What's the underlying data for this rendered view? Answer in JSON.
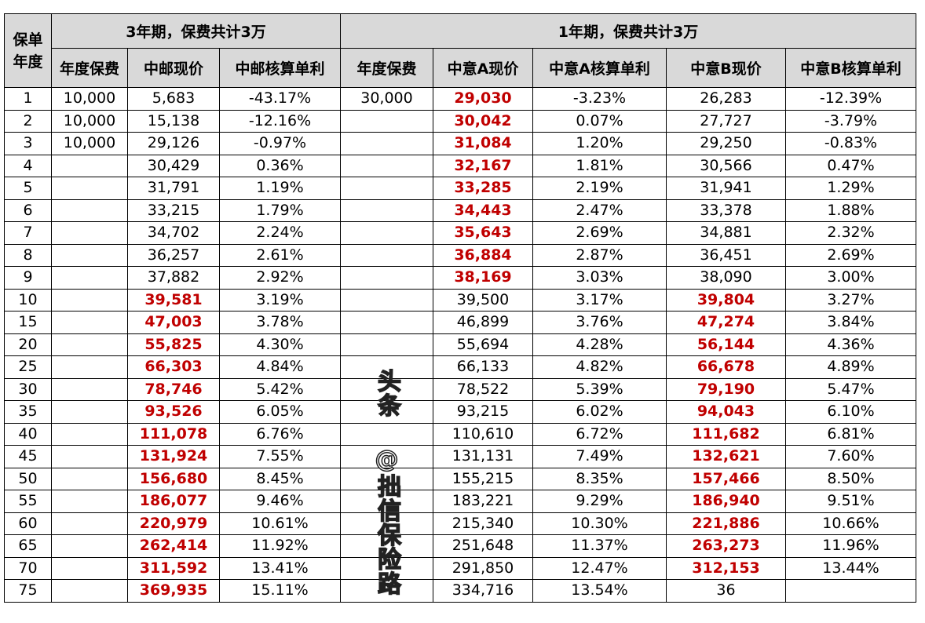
{
  "header": {
    "year_col": "保单年度",
    "group1": "3年期，保费共计3万",
    "group2": "1年期，保费共计3万",
    "columns": [
      "年度保费",
      "中邮现价",
      "中邮核算单利",
      "年度保费",
      "中意A现价",
      "中意A核算单利",
      "中意B现价",
      "中意B核算单利"
    ]
  },
  "highlight_color": "#c00000",
  "rows": [
    {
      "cells": [
        "1",
        "10,000",
        "5,683",
        "-43.17%",
        "30,000",
        "29,030",
        "-3.23%",
        "26,283",
        "-12.39%"
      ],
      "hl": [
        5
      ]
    },
    {
      "cells": [
        "2",
        "10,000",
        "15,138",
        "-12.16%",
        "",
        "30,042",
        "0.07%",
        "27,727",
        "-3.79%"
      ],
      "hl": [
        5
      ]
    },
    {
      "cells": [
        "3",
        "10,000",
        "29,126",
        "-0.97%",
        "",
        "31,084",
        "1.20%",
        "29,250",
        "-0.83%"
      ],
      "hl": [
        5
      ]
    },
    {
      "cells": [
        "4",
        "",
        "30,429",
        "0.36%",
        "",
        "32,167",
        "1.81%",
        "30,566",
        "0.47%"
      ],
      "hl": [
        5
      ]
    },
    {
      "cells": [
        "5",
        "",
        "31,791",
        "1.19%",
        "",
        "33,285",
        "2.19%",
        "31,941",
        "1.29%"
      ],
      "hl": [
        5
      ]
    },
    {
      "cells": [
        "6",
        "",
        "33,215",
        "1.79%",
        "",
        "34,443",
        "2.47%",
        "33,378",
        "1.88%"
      ],
      "hl": [
        5
      ]
    },
    {
      "cells": [
        "7",
        "",
        "34,702",
        "2.24%",
        "",
        "35,643",
        "2.69%",
        "34,881",
        "2.32%"
      ],
      "hl": [
        5
      ]
    },
    {
      "cells": [
        "8",
        "",
        "36,257",
        "2.61%",
        "",
        "36,884",
        "2.87%",
        "36,451",
        "2.69%"
      ],
      "hl": [
        5
      ]
    },
    {
      "cells": [
        "9",
        "",
        "37,882",
        "2.92%",
        "",
        "38,169",
        "3.03%",
        "38,090",
        "3.00%"
      ],
      "hl": [
        5
      ]
    },
    {
      "cells": [
        "10",
        "",
        "39,581",
        "3.19%",
        "",
        "39,500",
        "3.17%",
        "39,804",
        "3.27%"
      ],
      "hl": [
        2,
        7
      ]
    },
    {
      "cells": [
        "15",
        "",
        "47,003",
        "3.78%",
        "",
        "46,899",
        "3.76%",
        "47,274",
        "3.84%"
      ],
      "hl": [
        2,
        7
      ]
    },
    {
      "cells": [
        "20",
        "",
        "55,825",
        "4.30%",
        "",
        "55,694",
        "4.28%",
        "56,144",
        "4.36%"
      ],
      "hl": [
        2,
        7
      ]
    },
    {
      "cells": [
        "25",
        "",
        "66,303",
        "4.84%",
        "",
        "66,133",
        "4.82%",
        "66,678",
        "4.89%"
      ],
      "hl": [
        2,
        7
      ]
    },
    {
      "cells": [
        "30",
        "",
        "78,746",
        "5.42%",
        "",
        "78,522",
        "5.39%",
        "79,190",
        "5.47%"
      ],
      "hl": [
        2,
        7
      ]
    },
    {
      "cells": [
        "35",
        "",
        "93,526",
        "6.05%",
        "",
        "93,215",
        "6.02%",
        "94,043",
        "6.10%"
      ],
      "hl": [
        2,
        7
      ]
    },
    {
      "cells": [
        "40",
        "",
        "111,078",
        "6.76%",
        "",
        "110,610",
        "6.72%",
        "111,682",
        "6.81%"
      ],
      "hl": [
        2,
        7
      ]
    },
    {
      "cells": [
        "45",
        "",
        "131,924",
        "7.55%",
        "",
        "131,131",
        "7.49%",
        "132,621",
        "7.60%"
      ],
      "hl": [
        2,
        7
      ]
    },
    {
      "cells": [
        "50",
        "",
        "156,680",
        "8.45%",
        "",
        "155,215",
        "8.35%",
        "157,466",
        "8.50%"
      ],
      "hl": [
        2,
        7
      ]
    },
    {
      "cells": [
        "55",
        "",
        "186,077",
        "9.46%",
        "",
        "183,221",
        "9.29%",
        "186,940",
        "9.51%"
      ],
      "hl": [
        2,
        7
      ]
    },
    {
      "cells": [
        "60",
        "",
        "220,979",
        "10.61%",
        "",
        "215,340",
        "10.30%",
        "221,886",
        "10.66%"
      ],
      "hl": [
        2,
        7
      ]
    },
    {
      "cells": [
        "65",
        "",
        "262,414",
        "11.92%",
        "",
        "251,648",
        "11.37%",
        "263,273",
        "11.96%"
      ],
      "hl": [
        2,
        7
      ]
    },
    {
      "cells": [
        "70",
        "",
        "311,592",
        "13.41%",
        "",
        "291,850",
        "12.47%",
        "312,153",
        "13.44%"
      ],
      "hl": [
        2,
        7
      ]
    },
    {
      "cells": [
        "75",
        "",
        "369,935",
        "15.11%",
        "",
        "334,716",
        "13.54%",
        "36",
        ""
      ],
      "hl": [
        2
      ]
    }
  ],
  "watermark": "头条 @拙信保险路"
}
